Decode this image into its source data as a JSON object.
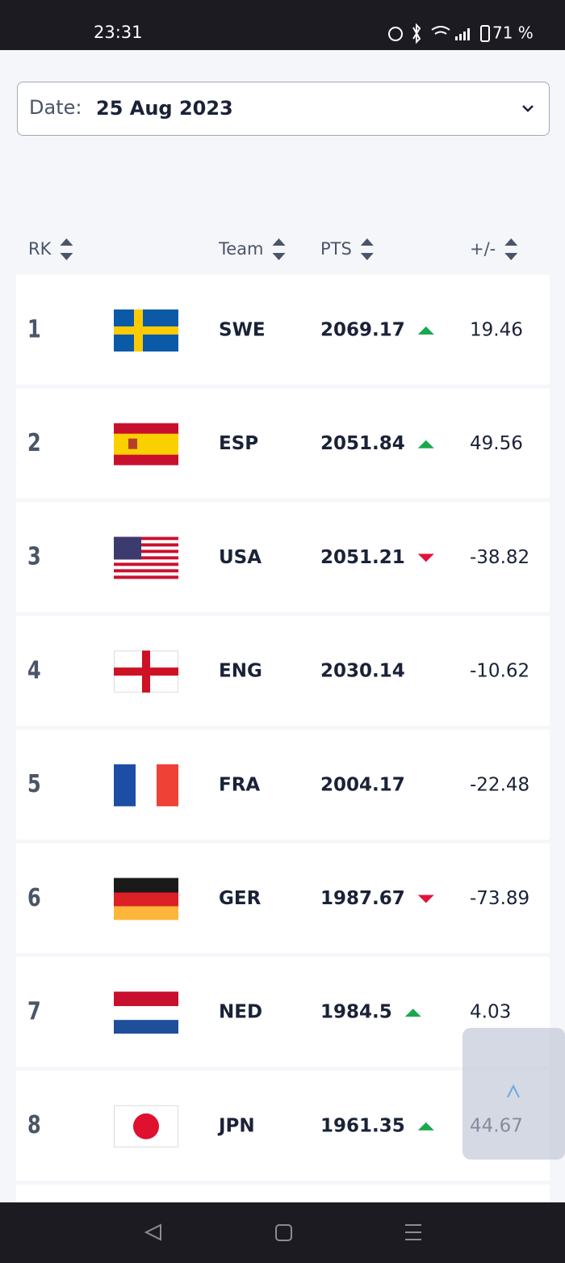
{
  "status_bar": {
    "time": "23:31",
    "battery": "71 %"
  },
  "date_filter": {
    "label": "Date:",
    "value": "25 Aug 2023"
  },
  "table": {
    "headers": [
      "RK",
      "Team",
      "PTS",
      "+/-"
    ],
    "rows": [
      {
        "rank": 1,
        "team": "SWE",
        "points": 2069.17,
        "trend": "up",
        "change": 19.46
      },
      {
        "rank": 2,
        "team": "ESP",
        "points": 2051.84,
        "trend": "up",
        "change": 49.56
      },
      {
        "rank": 3,
        "team": "USA",
        "points": 2051.21,
        "trend": "down",
        "change": -38.82
      },
      {
        "rank": 4,
        "team": "ENG",
        "points": 2030.14,
        "trend": null,
        "change": -10.62
      },
      {
        "rank": 5,
        "team": "FRA",
        "points": 2004.17,
        "trend": null,
        "change": -22.48
      },
      {
        "rank": 6,
        "team": "GER",
        "points": 1987.67,
        "trend": "down",
        "change": -73.89
      },
      {
        "rank": 7,
        "team": "NED",
        "points": 1984.5,
        "trend": "up",
        "change": 4.03
      },
      {
        "rank": 8,
        "team": "JPN",
        "points": 1961.35,
        "trend": "up",
        "change": 44.67
      }
    ]
  }
}
